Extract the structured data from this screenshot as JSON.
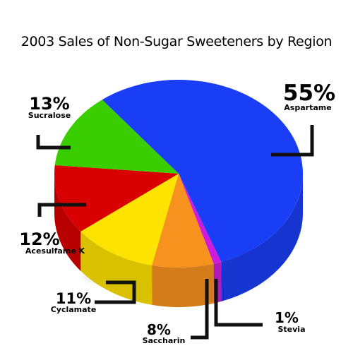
{
  "chart_data": {
    "type": "pie",
    "title": "2003 Sales of Non-Sugar Sweeteners by Region",
    "categories": [
      "Aspartame",
      "Stevia",
      "Saccharin",
      "Cyclamate",
      "Acesulfame K",
      "Sucralose"
    ],
    "values": [
      55,
      1,
      8,
      11,
      12,
      13
    ],
    "value_labels": [
      "55%",
      "1%",
      "8%",
      "11%",
      "12%",
      "13%"
    ],
    "colors": [
      "#1a3ef5",
      "#d21adb",
      "#f7921e",
      "#ffe300",
      "#d80000",
      "#3acd00"
    ]
  }
}
